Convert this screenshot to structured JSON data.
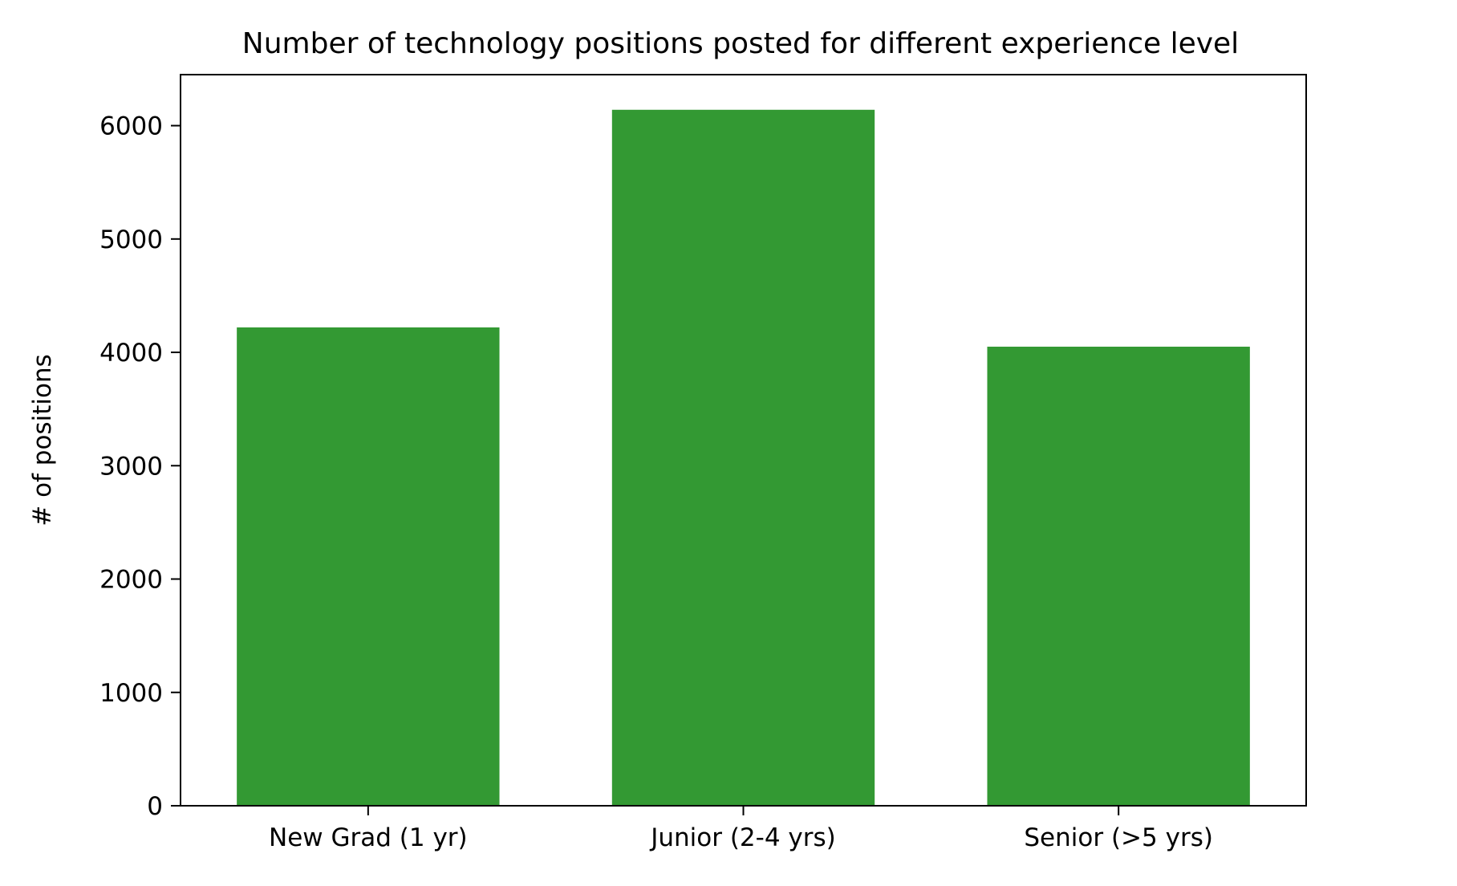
{
  "chart_data": {
    "type": "bar",
    "title": "Number of technology positions posted for different experience level",
    "xlabel": "",
    "ylabel": "# of positions",
    "categories": [
      "New Grad (1 yr)",
      "Junior (2-4 yrs)",
      "Senior (>5 yrs)"
    ],
    "values": [
      4220,
      6140,
      4050
    ],
    "ylim": [
      0,
      6450
    ],
    "yticks": [
      0,
      1000,
      2000,
      3000,
      4000,
      5000,
      6000
    ],
    "bar_color": "#339933",
    "grid": false,
    "legend": "none"
  }
}
